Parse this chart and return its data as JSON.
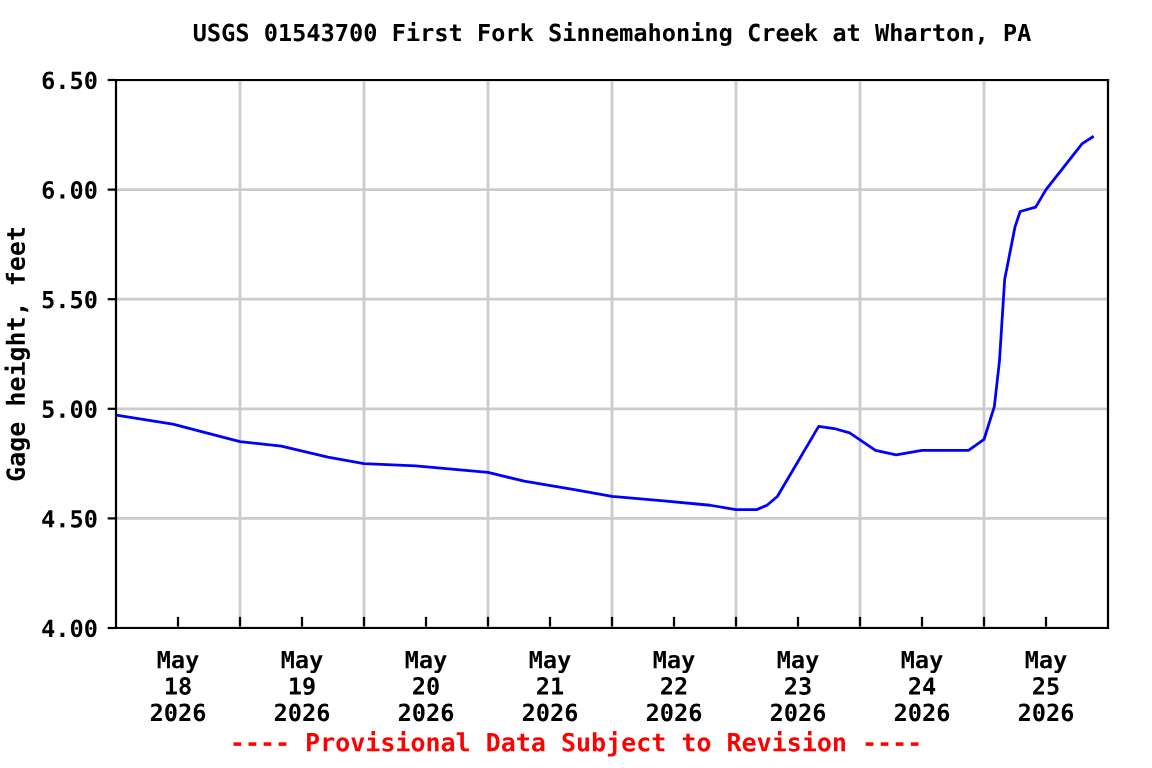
{
  "chart_data": {
    "type": "line",
    "title": "USGS 01543700 First Fork Sinnemahoning Creek at Wharton, PA",
    "ylabel": "Gage height, feet",
    "x": [
      "2026-05-18T00:20",
      "2026-05-18T11:00",
      "2026-05-19T00:00",
      "2026-05-19T08:00",
      "2026-05-19T17:00",
      "2026-05-20T00:00",
      "2026-05-20T10:00",
      "2026-05-21T00:00",
      "2026-05-21T07:00",
      "2026-05-21T17:00",
      "2026-05-22T00:00",
      "2026-05-22T10:00",
      "2026-05-22T19:00",
      "2026-05-23T00:00",
      "2026-05-23T04:00",
      "2026-05-23T06:00",
      "2026-05-23T08:00",
      "2026-05-23T10:00",
      "2026-05-23T16:00",
      "2026-05-23T19:00",
      "2026-05-23T22:00",
      "2026-05-24T03:00",
      "2026-05-24T07:00",
      "2026-05-24T12:00",
      "2026-05-24T21:00",
      "2026-05-25T00:00",
      "2026-05-25T02:00",
      "2026-05-25T03:00",
      "2026-05-25T04:00",
      "2026-05-25T06:00",
      "2026-05-25T07:00",
      "2026-05-25T10:00",
      "2026-05-25T12:00",
      "2026-05-25T16:00",
      "2026-05-25T19:00",
      "2026-05-25T21:00"
    ],
    "series": [
      {
        "color": "#0000ff",
        "values": [
          4.97,
          4.93,
          4.85,
          4.83,
          4.78,
          4.75,
          4.74,
          4.71,
          4.67,
          4.63,
          4.6,
          4.58,
          4.56,
          4.54,
          4.54,
          4.56,
          4.6,
          4.68,
          4.92,
          4.91,
          4.89,
          4.81,
          4.79,
          4.81,
          4.81,
          4.86,
          5.01,
          5.22,
          5.59,
          5.83,
          5.9,
          5.92,
          6.0,
          6.12,
          6.21,
          6.24
        ]
      }
    ],
    "xlim": [
      "2026-05-18T00:00",
      "2026-05-26T00:00"
    ],
    "xticks": [
      {
        "value": "2026-05-18T12:00",
        "label": "May\n18\n2026"
      },
      {
        "value": "2026-05-19T00:00",
        "label": null
      },
      {
        "value": "2026-05-19T12:00",
        "label": "May\n19\n2026"
      },
      {
        "value": "2026-05-20T00:00",
        "label": null
      },
      {
        "value": "2026-05-20T12:00",
        "label": "May\n20\n2026"
      },
      {
        "value": "2026-05-21T00:00",
        "label": null
      },
      {
        "value": "2026-05-21T12:00",
        "label": "May\n21\n2026"
      },
      {
        "value": "2026-05-22T00:00",
        "label": null
      },
      {
        "value": "2026-05-22T12:00",
        "label": "May\n22\n2026"
      },
      {
        "value": "2026-05-23T00:00",
        "label": null
      },
      {
        "value": "2026-05-23T12:00",
        "label": "May\n23\n2026"
      },
      {
        "value": "2026-05-24T00:00",
        "label": null
      },
      {
        "value": "2026-05-24T12:00",
        "label": "May\n24\n2026"
      },
      {
        "value": "2026-05-25T00:00",
        "label": null
      },
      {
        "value": "2026-05-25T12:00",
        "label": "May\n25\n2026"
      }
    ],
    "ylim": [
      4.0,
      6.5
    ],
    "yticks": [
      {
        "value": 4.0,
        "label": "4.00"
      },
      {
        "value": 4.5,
        "label": "4.50"
      },
      {
        "value": 5.0,
        "label": "5.00"
      },
      {
        "value": 5.5,
        "label": "5.50"
      },
      {
        "value": 6.0,
        "label": "6.00"
      },
      {
        "value": 6.5,
        "label": "6.50"
      }
    ],
    "grid": true,
    "annotations": [
      "---- Provisional Data Subject to Revision ----"
    ]
  }
}
